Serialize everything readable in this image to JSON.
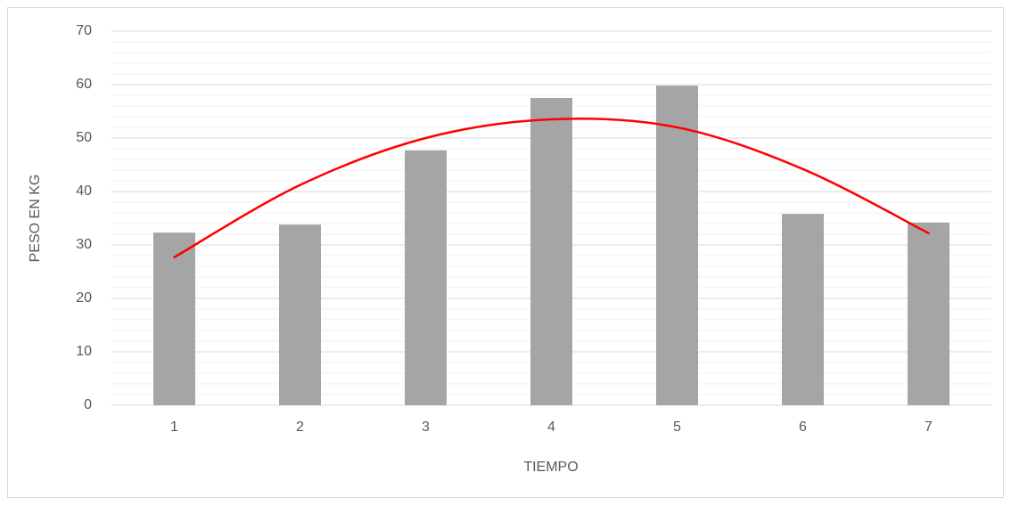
{
  "chart_data": {
    "type": "bar",
    "x_label": "TIEMPO",
    "y_label": "PESO EN KG",
    "categories": [
      "1",
      "2",
      "3",
      "4",
      "5",
      "6",
      "7"
    ],
    "series": [
      {
        "type": "bar",
        "color": "#a5a5a5",
        "values": [
          32.3,
          33.8,
          47.7,
          57.5,
          59.8,
          35.8,
          34.2
        ]
      },
      {
        "type": "trendline",
        "color": "#ff0000",
        "values": [
          27.7,
          41.2,
          50,
          53.5,
          52,
          44.2,
          32.2
        ]
      }
    ],
    "ylim": [
      0,
      70
    ],
    "yticks": [
      0,
      10,
      20,
      30,
      40,
      50,
      60,
      70
    ],
    "minor_yticks": [
      2,
      4,
      6,
      8,
      12,
      14,
      16,
      18,
      22,
      24,
      26,
      28,
      32,
      34,
      36,
      38,
      42,
      44,
      46,
      48,
      52,
      54,
      56,
      58,
      62,
      64,
      66,
      68
    ],
    "grid": true
  }
}
